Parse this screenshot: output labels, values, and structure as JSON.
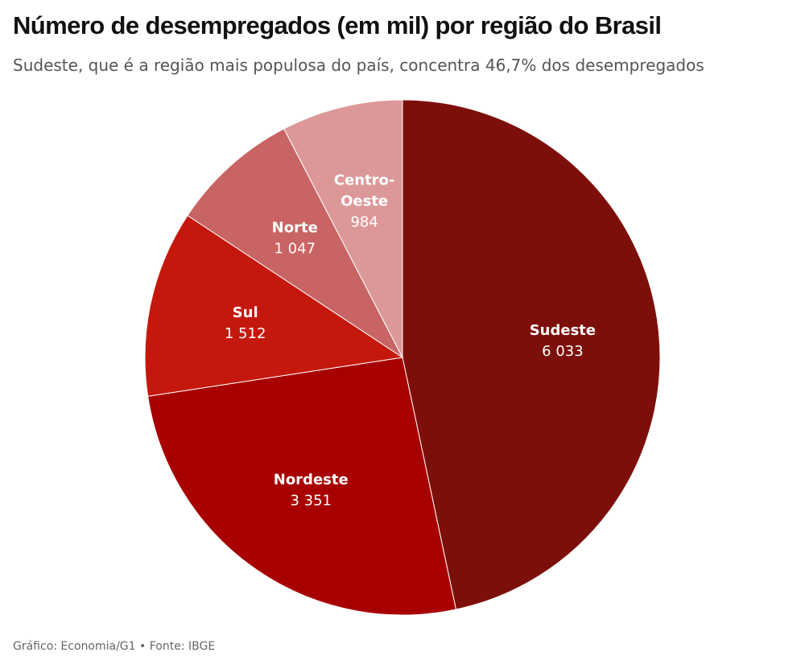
{
  "header": {
    "title": "Número de desempregados (em mil) por região do Brasil",
    "subtitle": "Sudeste, que é a região mais populosa do país, concentra 46,7% dos desempregados"
  },
  "footer": {
    "source": "Gráfico: Economia/G1 • Fonte: IBGE"
  },
  "chart_data": {
    "type": "pie",
    "title": "Número de desempregados (em mil) por região do Brasil",
    "subtitle": "Sudeste, que é a região mais populosa do país, concentra 46,7% dos desempregados",
    "start": "top",
    "direction": "clockwise",
    "slices": [
      {
        "name": "Sudeste",
        "label_lines": [
          "Sudeste"
        ],
        "value": 6033,
        "value_label": "6 033",
        "color": "#7d0f0a"
      },
      {
        "name": "Nordeste",
        "label_lines": [
          "Nordeste"
        ],
        "value": 3351,
        "value_label": "3 351",
        "color": "#a80000"
      },
      {
        "name": "Sul",
        "label_lines": [
          "Sul"
        ],
        "value": 1512,
        "value_label": "1 512",
        "color": "#c4180d"
      },
      {
        "name": "Norte",
        "label_lines": [
          "Norte"
        ],
        "value": 1047,
        "value_label": "1 047",
        "color": "#c96464"
      },
      {
        "name": "Centro-Oeste",
        "label_lines": [
          "Centro-",
          "Oeste"
        ],
        "value": 984,
        "value_label": "984",
        "color": "#dc9898"
      }
    ]
  }
}
